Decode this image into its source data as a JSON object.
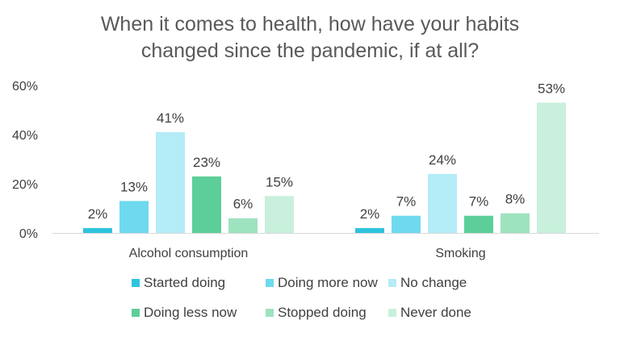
{
  "chart_data": {
    "type": "bar",
    "title_lines": [
      "When it comes to health, how have your habits",
      "changed since the pandemic, if at all?"
    ],
    "categories": [
      "Alcohol consumption",
      "Smoking"
    ],
    "series": [
      {
        "name": "Started doing",
        "values": [
          2,
          2
        ],
        "color": "#2ec4dc"
      },
      {
        "name": "Doing more now",
        "values": [
          13,
          7
        ],
        "color": "#6ed9ef"
      },
      {
        "name": "No change",
        "values": [
          41,
          24
        ],
        "color": "#b4ecf7"
      },
      {
        "name": "Doing less now",
        "values": [
          23,
          7
        ],
        "color": "#5ccf98"
      },
      {
        "name": "Stopped doing",
        "values": [
          6,
          8
        ],
        "color": "#9ee3c0"
      },
      {
        "name": "Never done",
        "values": [
          15,
          53
        ],
        "color": "#c8f0dc"
      }
    ],
    "value_suffix": "%",
    "ylim": [
      0,
      60
    ],
    "yticks": [
      "0%",
      "20%",
      "40%",
      "60%"
    ],
    "ytick_values": [
      0,
      20,
      40,
      60
    ],
    "grid": false,
    "legend_position": "bottom"
  }
}
